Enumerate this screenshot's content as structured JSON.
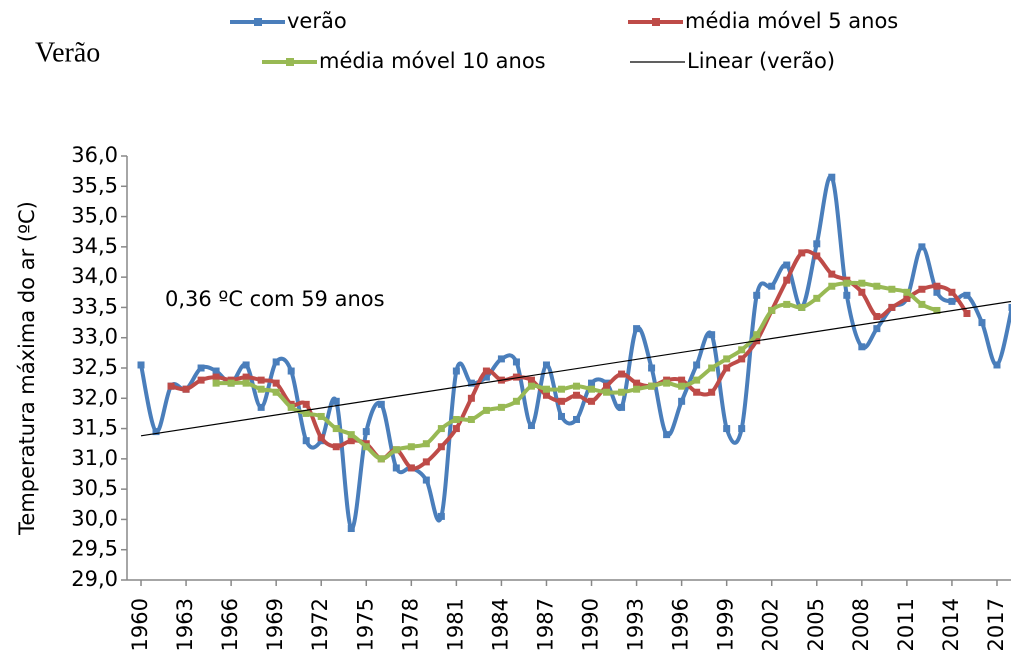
{
  "chart_data": {
    "type": "line",
    "title": "Verão",
    "y_label": "Temperatura máxima do ar (ºC)",
    "annotation": "0,36 ºC com 59 anos",
    "x": [
      1960,
      1961,
      1962,
      1963,
      1964,
      1965,
      1966,
      1967,
      1968,
      1969,
      1970,
      1971,
      1972,
      1973,
      1974,
      1975,
      1976,
      1977,
      1978,
      1979,
      1980,
      1981,
      1982,
      1983,
      1984,
      1985,
      1986,
      1987,
      1988,
      1989,
      1990,
      1991,
      1992,
      1993,
      1994,
      1995,
      1996,
      1997,
      1998,
      1999,
      2000,
      2001,
      2002,
      2003,
      2004,
      2005,
      2006,
      2007,
      2008,
      2009,
      2010,
      2011,
      2012,
      2013,
      2014,
      2015,
      2016,
      2017,
      2018
    ],
    "series": [
      {
        "name": "verão",
        "color": "#4a7ebb",
        "values": [
          32.55,
          31.45,
          32.2,
          32.15,
          32.5,
          32.45,
          32.25,
          32.55,
          31.85,
          32.6,
          32.45,
          31.3,
          31.3,
          31.95,
          29.85,
          31.45,
          31.9,
          30.85,
          30.85,
          30.65,
          30.05,
          32.45,
          32.25,
          32.35,
          32.65,
          32.6,
          31.55,
          32.55,
          31.7,
          31.65,
          32.25,
          32.25,
          31.85,
          33.15,
          32.5,
          31.4,
          31.95,
          32.55,
          33.05,
          31.5,
          31.5,
          33.7,
          33.85,
          34.2,
          33.5,
          34.55,
          35.65,
          33.7,
          32.85,
          33.15,
          33.5,
          33.65,
          34.5,
          33.75,
          33.6,
          33.7,
          33.25,
          32.55,
          33.5
        ]
      },
      {
        "name": "média móvel 5 anos",
        "color": "#be4b48",
        "values": [
          null,
          null,
          32.2,
          32.15,
          32.3,
          32.35,
          32.3,
          32.35,
          32.3,
          32.25,
          31.9,
          31.9,
          31.35,
          31.2,
          31.3,
          31.25,
          31.0,
          31.15,
          30.85,
          30.95,
          31.2,
          31.5,
          32.0,
          32.45,
          32.3,
          32.35,
          32.3,
          32.05,
          31.95,
          32.05,
          31.95,
          32.2,
          32.4,
          32.25,
          32.2,
          32.3,
          32.3,
          32.1,
          32.1,
          32.5,
          32.65,
          32.95,
          33.45,
          33.95,
          34.4,
          34.35,
          34.05,
          33.95,
          33.75,
          33.35,
          33.5,
          33.65,
          33.8,
          33.85,
          33.75,
          33.4,
          null,
          null,
          null
        ]
      },
      {
        "name": "média móvel 10 anos",
        "color": "#98b954",
        "values": [
          null,
          null,
          null,
          null,
          null,
          32.25,
          32.25,
          32.25,
          32.15,
          32.1,
          31.85,
          31.75,
          31.7,
          31.5,
          31.4,
          31.2,
          31.0,
          31.15,
          31.2,
          31.25,
          31.5,
          31.65,
          31.65,
          31.8,
          31.85,
          31.95,
          32.2,
          32.15,
          32.15,
          32.2,
          32.15,
          32.1,
          32.1,
          32.15,
          32.2,
          32.25,
          32.2,
          32.3,
          32.5,
          32.65,
          32.8,
          33.05,
          33.45,
          33.55,
          33.5,
          33.65,
          33.85,
          33.9,
          33.9,
          33.85,
          33.8,
          33.75,
          33.55,
          33.45,
          null,
          null,
          null,
          null,
          null
        ]
      }
    ],
    "trendline": {
      "name": "Linear (verão)",
      "color": "#000000",
      "x": [
        1960,
        2018
      ],
      "values": [
        31.38,
        33.6
      ]
    },
    "xlim": [
      1959,
      2018
    ],
    "xticks": [
      1960,
      1963,
      1966,
      1969,
      1972,
      1975,
      1978,
      1981,
      1984,
      1987,
      1990,
      1993,
      1996,
      1999,
      2002,
      2005,
      2008,
      2011,
      2014,
      2017
    ],
    "ylim": [
      29,
      36
    ],
    "yticks": [
      {
        "value": 29,
        "label": "29,0"
      },
      {
        "value": 29.5,
        "label": "29,5"
      },
      {
        "value": 30,
        "label": "30,0"
      },
      {
        "value": 30.5,
        "label": "30,5"
      },
      {
        "value": 31,
        "label": "31,0"
      },
      {
        "value": 31.5,
        "label": "31,5"
      },
      {
        "value": 32,
        "label": "32,0"
      },
      {
        "value": 32.5,
        "label": "32,5"
      },
      {
        "value": 33,
        "label": "33,0"
      },
      {
        "value": 33.5,
        "label": "33,5"
      },
      {
        "value": 34,
        "label": "34,0"
      },
      {
        "value": 34.5,
        "label": "34,5"
      },
      {
        "value": 35,
        "label": "35,0"
      },
      {
        "value": 35.5,
        "label": "35,5"
      },
      {
        "value": 36,
        "label": "36,0"
      }
    ],
    "grid": false
  }
}
